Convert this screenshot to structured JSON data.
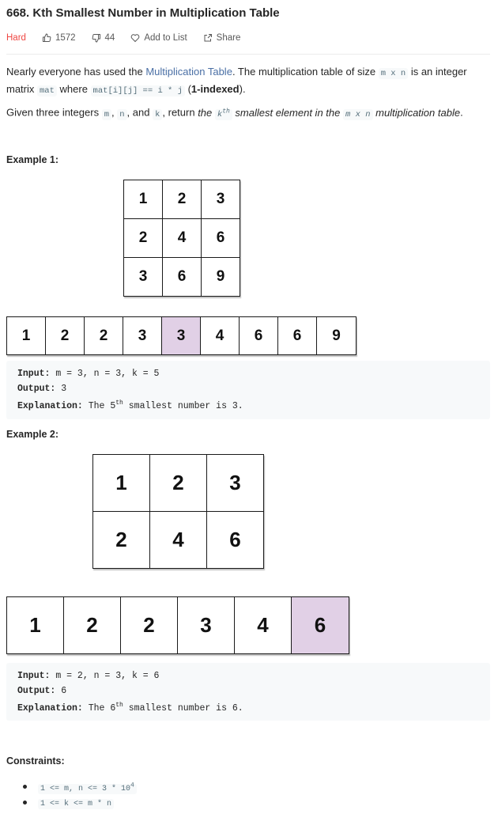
{
  "problem": {
    "title": "668. Kth Smallest Number in Multiplication Table",
    "difficulty": "Hard",
    "likes": "1572",
    "dislikes": "44",
    "add_to_list": "Add to List",
    "share": "Share"
  },
  "description": {
    "p1_a": "Nearly everyone has used the ",
    "p1_link": "Multiplication Table",
    "p1_b": ". The multiplication table of size ",
    "p1_code1": "m x n",
    "p1_c": " is an integer matrix ",
    "p1_code2": "mat",
    "p1_d": " where ",
    "p1_code3": "mat[i][j] == i * j",
    "p1_e": " (",
    "p1_bold": "1-indexed",
    "p1_f": ").",
    "p2_a": "Given three integers ",
    "p2_code1": "m",
    "p2_b": ", ",
    "p2_code2": "n",
    "p2_c": ", and ",
    "p2_code3": "k",
    "p2_d": ", return ",
    "p2_i1": "the ",
    "p2_code4": "k",
    "p2_sup": "th",
    "p2_i2": " smallest element in the ",
    "p2_code5": "m x n",
    "p2_i3": " multiplication table",
    "p2_e": "."
  },
  "example1": {
    "title": "Example 1:",
    "grid": [
      [
        "1",
        "2",
        "3"
      ],
      [
        "2",
        "4",
        "6"
      ],
      [
        "3",
        "6",
        "9"
      ]
    ],
    "strip": [
      "1",
      "2",
      "2",
      "3",
      "3",
      "4",
      "6",
      "6",
      "9"
    ],
    "highlight_index": 4,
    "input_label": "Input:",
    "input": " m = 3, n = 3, k = 5",
    "output_label": "Output:",
    "output": " 3",
    "explanation_label": "Explanation:",
    "explanation_a": " The 5",
    "explanation_sup": "th",
    "explanation_b": " smallest number is 3."
  },
  "example2": {
    "title": "Example 2:",
    "grid": [
      [
        "1",
        "2",
        "3"
      ],
      [
        "2",
        "4",
        "6"
      ]
    ],
    "strip": [
      "1",
      "2",
      "2",
      "3",
      "4",
      "6"
    ],
    "highlight_index": 5,
    "input_label": "Input:",
    "input": " m = 2, n = 3, k = 6",
    "output_label": "Output:",
    "output": " 6",
    "explanation_label": "Explanation:",
    "explanation_a": " The 6",
    "explanation_sup": "th",
    "explanation_b": " smallest number is 6."
  },
  "constraints": {
    "title": "Constraints:",
    "c1_a": "1 <= m, n <= 3 * 10",
    "c1_sup": "4",
    "c2": "1 <= k <= m * n"
  },
  "colors": {
    "hard": "#ef4743",
    "highlight": "#e1d0e6",
    "link": "#4a6fa5"
  }
}
